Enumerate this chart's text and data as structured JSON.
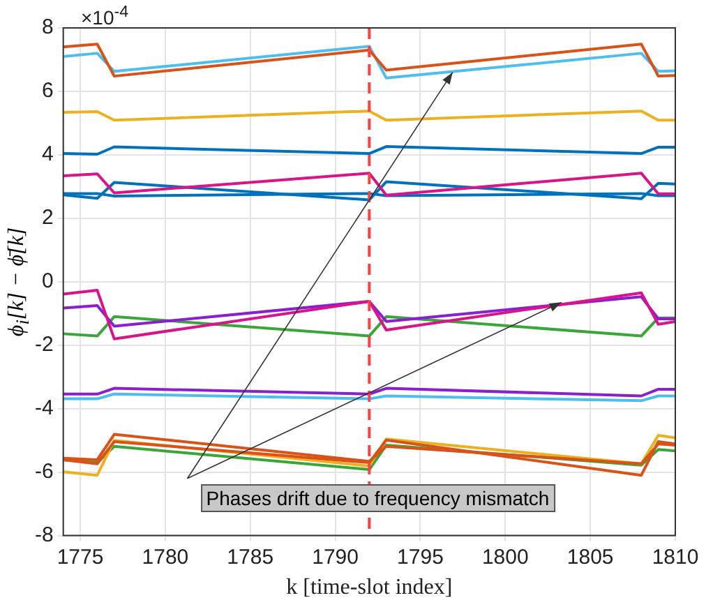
{
  "chart_data": {
    "type": "line",
    "xlabel": "k [time-slot index]",
    "ylabel": "ϕ$_{i}$[k] − ϕ̄[k]",
    "x": [
      1774,
      1776,
      1777,
      1792,
      1793,
      1808,
      1809,
      1810
    ],
    "xlim": [
      1774,
      1810
    ],
    "xticks": [
      1775,
      1780,
      1785,
      1790,
      1795,
      1800,
      1805,
      1810
    ],
    "ylim": [
      -8,
      8
    ],
    "yticks": [
      -8,
      -6,
      -4,
      -2,
      0,
      2,
      4,
      6,
      8
    ],
    "grid": true,
    "legend": false,
    "marker": "none",
    "line_style": "solid",
    "series": [
      {
        "color": "#d95319",
        "values": [
          7.4,
          7.49,
          6.48,
          7.3,
          6.67,
          7.49,
          6.48,
          6.5
        ]
      },
      {
        "color": "#4dbeee",
        "values": [
          7.1,
          7.2,
          6.63,
          7.42,
          6.42,
          7.2,
          6.63,
          6.65
        ]
      },
      {
        "color": "#edb120",
        "values": [
          5.34,
          5.36,
          5.09,
          5.38,
          5.09,
          5.38,
          5.09,
          5.09
        ]
      },
      {
        "color": "#0072bd",
        "values": [
          4.04,
          4.02,
          4.25,
          4.04,
          4.26,
          4.04,
          4.24,
          4.24
        ]
      },
      {
        "color": "#d9138a",
        "values": [
          3.34,
          3.4,
          2.8,
          3.42,
          2.73,
          3.42,
          2.77,
          2.77
        ]
      },
      {
        "color": "#0072bd",
        "values": [
          2.74,
          2.63,
          3.13,
          2.58,
          3.15,
          2.62,
          3.1,
          3.08
        ]
      },
      {
        "color": "#0072bd",
        "values": [
          2.78,
          2.78,
          2.7,
          2.78,
          2.71,
          2.78,
          2.71,
          2.71
        ]
      },
      {
        "color": "#d9138a",
        "values": [
          -0.39,
          -0.27,
          -1.8,
          -0.62,
          -1.52,
          -0.35,
          -1.34,
          -1.26
        ]
      },
      {
        "color": "#8b1fd0",
        "values": [
          -0.83,
          -0.75,
          -1.4,
          -0.62,
          -1.25,
          -0.47,
          -1.17,
          -1.17
        ]
      },
      {
        "color": "#3aa63a",
        "values": [
          -1.64,
          -1.71,
          -1.1,
          -1.71,
          -1.1,
          -1.71,
          -1.14,
          -1.14
        ]
      },
      {
        "color": "#8b1fd0",
        "values": [
          -3.54,
          -3.54,
          -3.36,
          -3.54,
          -3.36,
          -3.6,
          -3.39,
          -3.39
        ]
      },
      {
        "color": "#4dbeee",
        "values": [
          -3.69,
          -3.69,
          -3.54,
          -3.69,
          -3.6,
          -3.75,
          -3.6,
          -3.6
        ]
      },
      {
        "color": "#d95319",
        "values": [
          -5.56,
          -5.61,
          -4.81,
          -5.66,
          -5.19,
          -5.74,
          -5.11,
          -5.15
        ]
      },
      {
        "color": "#d95319",
        "values": [
          -5.61,
          -5.74,
          -5.04,
          -5.7,
          -4.99,
          -6.1,
          -5.04,
          -5.11
        ]
      },
      {
        "color": "#edb120",
        "values": [
          -5.99,
          -6.1,
          -5.0,
          -5.81,
          -4.96,
          -5.74,
          -4.84,
          -4.92
        ]
      },
      {
        "color": "#3aa63a",
        "values": [
          -5.61,
          -5.7,
          -5.19,
          -5.92,
          -5.15,
          -5.78,
          -5.29,
          -5.33
        ]
      }
    ],
    "ref_lines": [
      {
        "axis": "x",
        "value": 1792,
        "color": "#ff4040",
        "line_style": "dashed"
      }
    ],
    "annotations": [
      "×10$^{-4}$",
      "Phases drift due to frequency mismatch"
    ]
  }
}
